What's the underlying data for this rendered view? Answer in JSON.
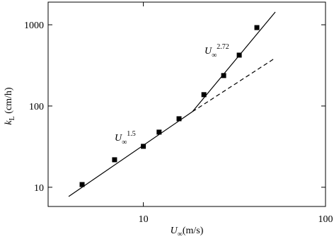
{
  "chart_data": {
    "type": "scatter",
    "xlabel": {
      "symbol": "U",
      "sub": "∞",
      "unit": "(m/s)"
    },
    "ylabel": {
      "symbol": "k",
      "sub": "L",
      "unit": " (cm/h)"
    },
    "xscale": "log",
    "yscale": "log",
    "xlim": [
      3,
      100
    ],
    "ylim": [
      5.8,
      1900
    ],
    "xticks": [
      10,
      100
    ],
    "yticks": [
      10,
      100,
      1000
    ],
    "points": {
      "x": [
        4.61,
        6.95,
        10.0,
        12.2,
        15.7,
        21.5,
        27.6,
        33.6,
        42.0
      ],
      "y": [
        10.8,
        21.8,
        31.9,
        47.7,
        69.7,
        138,
        237,
        423,
        923
      ],
      "color": "#000000"
    },
    "lines": [
      {
        "x": [
          3.89,
          18.6
        ],
        "y": [
          7.7,
          85.2
        ],
        "style": "solid"
      },
      {
        "x": [
          18.6,
          53
        ],
        "y": [
          85.2,
          1435
        ],
        "style": "solid"
      },
      {
        "x": [
          18.6,
          53
        ],
        "y": [
          85.2,
          390
        ],
        "style": "dashed"
      }
    ],
    "annotations": [
      {
        "symbol": "U",
        "sub": "∞",
        "sup": "1.5"
      },
      {
        "symbol": "U",
        "sub": "∞",
        "sup": "2.72"
      }
    ]
  }
}
